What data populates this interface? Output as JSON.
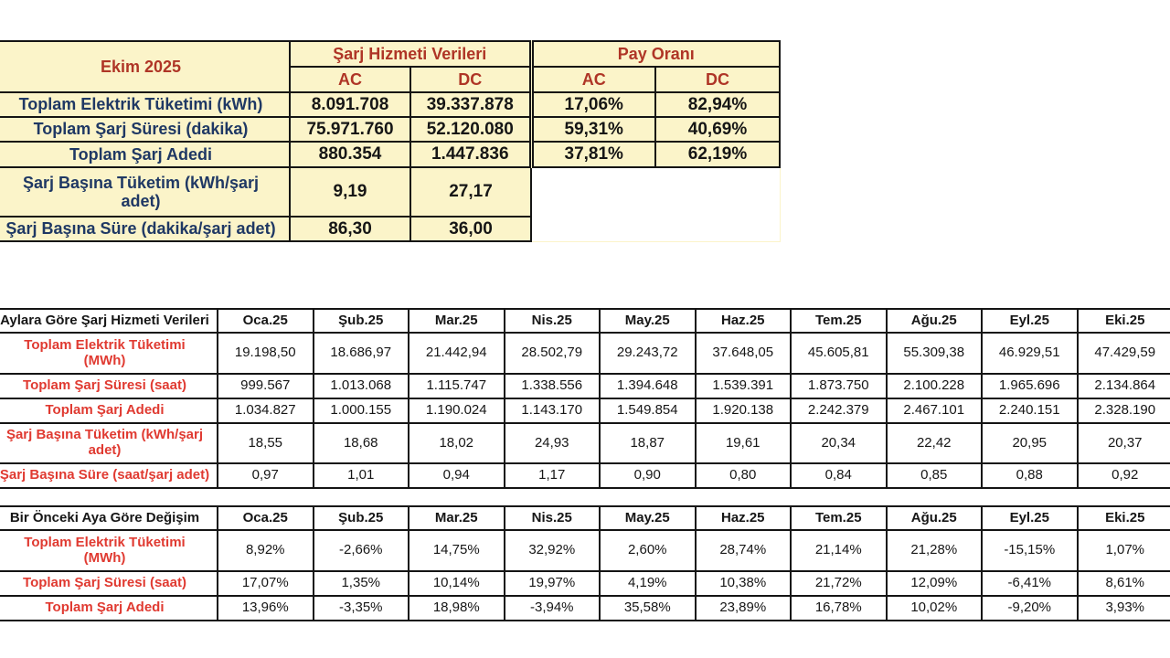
{
  "colors": {
    "yellow": "#FBF4C9",
    "navy": "#1F3864",
    "dark_red": "#AF3526",
    "label_red": "#E03A31",
    "line": "#141414"
  },
  "summary_table": {
    "title": "Ekim 2025",
    "group_headers": [
      "Şarj Hizmeti Verileri",
      "Pay Oranı"
    ],
    "sub_headers": [
      "AC",
      "DC",
      "AC",
      "DC"
    ],
    "rows": [
      {
        "label": "Toplam Elektrik Tüketimi (kWh)",
        "values": [
          "8.091.708",
          "39.337.878",
          "17,06%",
          "82,94%"
        ]
      },
      {
        "label": "Toplam Şarj Süresi (dakika)",
        "values": [
          "75.971.760",
          "52.120.080",
          "59,31%",
          "40,69%"
        ]
      },
      {
        "label": "Toplam Şarj Adedi",
        "values": [
          "880.354",
          "1.447.836",
          "37,81%",
          "62,19%"
        ]
      },
      {
        "label": "Şarj Başına Tüketim (kWh/şarj\nadet)",
        "values": [
          "9,19",
          "27,17",
          null,
          null
        ]
      },
      {
        "label": "Şarj Başına Süre (dakika/şarj adet)",
        "values": [
          "86,30",
          "36,00",
          null,
          null
        ]
      }
    ]
  },
  "monthly_table": {
    "corner_label": "Aylara Göre Şarj Hizmeti Verileri",
    "months": [
      "Oca.25",
      "Şub.25",
      "Mar.25",
      "Nis.25",
      "May.25",
      "Haz.25",
      "Tem.25",
      "Ağu.25",
      "Eyl.25",
      "Eki.25"
    ],
    "rows": [
      {
        "label": "Toplam Elektrik Tüketimi\n(MWh)",
        "values": [
          "19.198,50",
          "18.686,97",
          "21.442,94",
          "28.502,79",
          "29.243,72",
          "37.648,05",
          "45.605,81",
          "55.309,38",
          "46.929,51",
          "47.429,59"
        ]
      },
      {
        "label": "Toplam Şarj Süresi (saat)",
        "values": [
          "999.567",
          "1.013.068",
          "1.115.747",
          "1.338.556",
          "1.394.648",
          "1.539.391",
          "1.873.750",
          "2.100.228",
          "1.965.696",
          "2.134.864"
        ]
      },
      {
        "label": "Toplam Şarj Adedi",
        "values": [
          "1.034.827",
          "1.000.155",
          "1.190.024",
          "1.143.170",
          "1.549.854",
          "1.920.138",
          "2.242.379",
          "2.467.101",
          "2.240.151",
          "2.328.190"
        ]
      },
      {
        "label": "Şarj Başına Tüketim (kWh/şarj\nadet)",
        "values": [
          "18,55",
          "18,68",
          "18,02",
          "24,93",
          "18,87",
          "19,61",
          "20,34",
          "22,42",
          "20,95",
          "20,37"
        ]
      },
      {
        "label": "Şarj Başına Süre (saat/şarj adet)",
        "values": [
          "0,97",
          "1,01",
          "0,94",
          "1,17",
          "0,90",
          "0,80",
          "0,84",
          "0,85",
          "0,88",
          "0,92"
        ]
      }
    ]
  },
  "change_table": {
    "corner_label": "Bir Önceki Aya Göre Değişim",
    "months": [
      "Oca.25",
      "Şub.25",
      "Mar.25",
      "Nis.25",
      "May.25",
      "Haz.25",
      "Tem.25",
      "Ağu.25",
      "Eyl.25",
      "Eki.25"
    ],
    "rows": [
      {
        "label": "Toplam Elektrik Tüketimi\n(MWh)",
        "values": [
          "8,92%",
          "-2,66%",
          "14,75%",
          "32,92%",
          "2,60%",
          "28,74%",
          "21,14%",
          "21,28%",
          "-15,15%",
          "1,07%"
        ]
      },
      {
        "label": "Toplam Şarj Süresi (saat)",
        "values": [
          "17,07%",
          "1,35%",
          "10,14%",
          "19,97%",
          "4,19%",
          "10,38%",
          "21,72%",
          "12,09%",
          "-6,41%",
          "8,61%"
        ]
      },
      {
        "label": "Toplam Şarj Adedi",
        "values": [
          "13,96%",
          "-3,35%",
          "18,98%",
          "-3,94%",
          "35,58%",
          "23,89%",
          "16,78%",
          "10,02%",
          "-9,20%",
          "3,93%"
        ]
      }
    ]
  }
}
